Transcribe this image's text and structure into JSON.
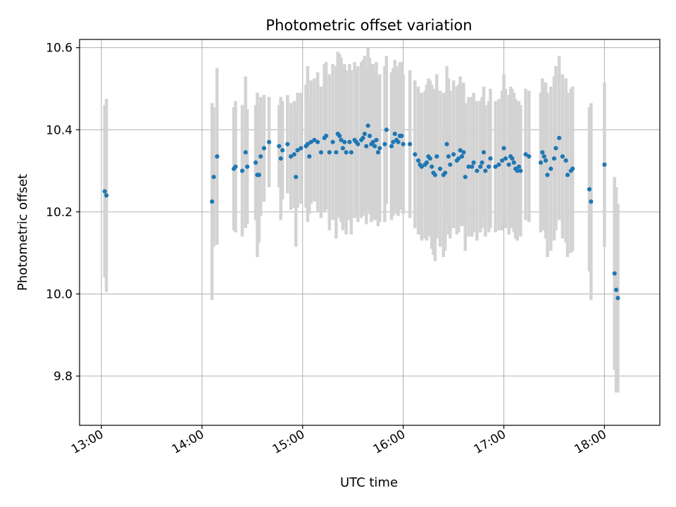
{
  "chart_data": {
    "type": "scatter",
    "title": "Photometric offset variation",
    "xlabel": "UTC time",
    "ylabel": "Photometric offset",
    "x_ticks": [
      "13:00",
      "14:00",
      "15:00",
      "16:00",
      "17:00",
      "18:00"
    ],
    "x_tick_hours": [
      13,
      14,
      15,
      16,
      17,
      18
    ],
    "y_ticks": [
      "9.8",
      "10.0",
      "10.2",
      "10.4",
      "10.6"
    ],
    "y_tick_values": [
      9.8,
      10.0,
      10.2,
      10.4,
      10.6
    ],
    "xlim": [
      "12:47",
      "18:33"
    ],
    "ylim": [
      9.68,
      10.62
    ],
    "grid": true,
    "colors": {
      "points": "#1f77b4",
      "errorbars": "#d3d3d3",
      "grid": "#b0b0b0"
    },
    "series": [
      {
        "points": [
          {
            "x": "13:02",
            "y": 10.25,
            "err": 0.21
          },
          {
            "x": "13:03",
            "y": 10.24,
            "err": 0.235
          },
          {
            "x": "14:06",
            "y": 10.225,
            "err": 0.24
          },
          {
            "x": "14:07",
            "y": 10.285,
            "err": 0.17
          },
          {
            "x": "14:09",
            "y": 10.335,
            "err": 0.215
          },
          {
            "x": "14:19",
            "y": 10.305,
            "err": 0.15
          },
          {
            "x": "14:20",
            "y": 10.31,
            "err": 0.16
          },
          {
            "x": "14:24",
            "y": 10.3,
            "err": 0.16
          },
          {
            "x": "14:26",
            "y": 10.345,
            "err": 0.185
          },
          {
            "x": "14:27",
            "y": 10.31,
            "err": 0.14
          },
          {
            "x": "14:32",
            "y": 10.32,
            "err": 0.14
          },
          {
            "x": "14:33",
            "y": 10.29,
            "err": 0.2
          },
          {
            "x": "14:34",
            "y": 10.29,
            "err": 0.165
          },
          {
            "x": "14:35",
            "y": 10.335,
            "err": 0.145
          },
          {
            "x": "14:37",
            "y": 10.355,
            "err": 0.13
          },
          {
            "x": "14:40",
            "y": 10.37,
            "err": 0.11
          },
          {
            "x": "14:46",
            "y": 10.36,
            "err": 0.1
          },
          {
            "x": "14:47",
            "y": 10.33,
            "err": 0.15
          },
          {
            "x": "14:48",
            "y": 10.35,
            "err": 0.12
          },
          {
            "x": "14:51",
            "y": 10.365,
            "err": 0.12
          },
          {
            "x": "14:53",
            "y": 10.335,
            "err": 0.13
          },
          {
            "x": "14:55",
            "y": 10.34,
            "err": 0.13
          },
          {
            "x": "14:56",
            "y": 10.285,
            "err": 0.17
          },
          {
            "x": "14:57",
            "y": 10.35,
            "err": 0.14
          },
          {
            "x": "14:59",
            "y": 10.355,
            "err": 0.135
          },
          {
            "x": "15:02",
            "y": 10.36,
            "err": 0.15
          },
          {
            "x": "15:03",
            "y": 10.365,
            "err": 0.19
          },
          {
            "x": "15:04",
            "y": 10.335,
            "err": 0.14
          },
          {
            "x": "15:05",
            "y": 10.37,
            "err": 0.15
          },
          {
            "x": "15:07",
            "y": 10.375,
            "err": 0.15
          },
          {
            "x": "15:09",
            "y": 10.37,
            "err": 0.17
          },
          {
            "x": "15:11",
            "y": 10.345,
            "err": 0.16
          },
          {
            "x": "15:13",
            "y": 10.38,
            "err": 0.18
          },
          {
            "x": "15:14",
            "y": 10.385,
            "err": 0.18
          },
          {
            "x": "15:16",
            "y": 10.345,
            "err": 0.19
          },
          {
            "x": "15:18",
            "y": 10.37,
            "err": 0.19
          },
          {
            "x": "15:20",
            "y": 10.345,
            "err": 0.21
          },
          {
            "x": "15:21",
            "y": 10.39,
            "err": 0.2
          },
          {
            "x": "15:22",
            "y": 10.385,
            "err": 0.2
          },
          {
            "x": "15:23",
            "y": 10.375,
            "err": 0.2
          },
          {
            "x": "15:24",
            "y": 10.355,
            "err": 0.2
          },
          {
            "x": "15:25",
            "y": 10.37,
            "err": 0.19
          },
          {
            "x": "15:26",
            "y": 10.345,
            "err": 0.2
          },
          {
            "x": "15:28",
            "y": 10.37,
            "err": 0.19
          },
          {
            "x": "15:29",
            "y": 10.345,
            "err": 0.2
          },
          {
            "x": "15:31",
            "y": 10.375,
            "err": 0.19
          },
          {
            "x": "15:32",
            "y": 10.37,
            "err": 0.18
          },
          {
            "x": "15:33",
            "y": 10.365,
            "err": 0.19
          },
          {
            "x": "15:35",
            "y": 10.375,
            "err": 0.19
          },
          {
            "x": "15:36",
            "y": 10.38,
            "err": 0.19
          },
          {
            "x": "15:37",
            "y": 10.39,
            "err": 0.19
          },
          {
            "x": "15:38",
            "y": 10.36,
            "err": 0.19
          },
          {
            "x": "15:39",
            "y": 10.41,
            "err": 0.19
          },
          {
            "x": "15:40",
            "y": 10.385,
            "err": 0.19
          },
          {
            "x": "15:41",
            "y": 10.365,
            "err": 0.19
          },
          {
            "x": "15:42",
            "y": 10.37,
            "err": 0.19
          },
          {
            "x": "15:43",
            "y": 10.36,
            "err": 0.18
          },
          {
            "x": "15:44",
            "y": 10.375,
            "err": 0.19
          },
          {
            "x": "15:45",
            "y": 10.345,
            "err": 0.18
          },
          {
            "x": "15:46",
            "y": 10.355,
            "err": 0.18
          },
          {
            "x": "15:49",
            "y": 10.365,
            "err": 0.19
          },
          {
            "x": "15:50",
            "y": 10.4,
            "err": 0.18
          },
          {
            "x": "15:53",
            "y": 10.36,
            "err": 0.18
          },
          {
            "x": "15:54",
            "y": 10.37,
            "err": 0.18
          },
          {
            "x": "15:55",
            "y": 10.39,
            "err": 0.18
          },
          {
            "x": "15:56",
            "y": 10.375,
            "err": 0.18
          },
          {
            "x": "15:57",
            "y": 10.37,
            "err": 0.18
          },
          {
            "x": "15:58",
            "y": 10.385,
            "err": 0.18
          },
          {
            "x": "15:59",
            "y": 10.385,
            "err": 0.18
          },
          {
            "x": "16:00",
            "y": 10.365,
            "err": 0.17
          },
          {
            "x": "16:04",
            "y": 10.365,
            "err": 0.18
          },
          {
            "x": "16:07",
            "y": 10.34,
            "err": 0.18
          },
          {
            "x": "16:09",
            "y": 10.325,
            "err": 0.18
          },
          {
            "x": "16:10",
            "y": 10.315,
            "err": 0.17
          },
          {
            "x": "16:11",
            "y": 10.31,
            "err": 0.18
          },
          {
            "x": "16:13",
            "y": 10.315,
            "err": 0.18
          },
          {
            "x": "16:14",
            "y": 10.32,
            "err": 0.19
          },
          {
            "x": "16:15",
            "y": 10.335,
            "err": 0.19
          },
          {
            "x": "16:16",
            "y": 10.33,
            "err": 0.19
          },
          {
            "x": "16:17",
            "y": 10.31,
            "err": 0.2
          },
          {
            "x": "16:18",
            "y": 10.295,
            "err": 0.2
          },
          {
            "x": "16:19",
            "y": 10.29,
            "err": 0.21
          },
          {
            "x": "16:20",
            "y": 10.335,
            "err": 0.2
          },
          {
            "x": "16:22",
            "y": 10.305,
            "err": 0.19
          },
          {
            "x": "16:24",
            "y": 10.29,
            "err": 0.2
          },
          {
            "x": "16:25",
            "y": 10.295,
            "err": 0.19
          },
          {
            "x": "16:26",
            "y": 10.365,
            "err": 0.19
          },
          {
            "x": "16:27",
            "y": 10.335,
            "err": 0.19
          },
          {
            "x": "16:28",
            "y": 10.315,
            "err": 0.18
          },
          {
            "x": "16:30",
            "y": 10.34,
            "err": 0.18
          },
          {
            "x": "16:32",
            "y": 10.325,
            "err": 0.18
          },
          {
            "x": "16:33",
            "y": 10.33,
            "err": 0.18
          },
          {
            "x": "16:34",
            "y": 10.35,
            "err": 0.18
          },
          {
            "x": "16:35",
            "y": 10.335,
            "err": 0.17
          },
          {
            "x": "16:36",
            "y": 10.345,
            "err": 0.17
          },
          {
            "x": "16:37",
            "y": 10.285,
            "err": 0.18
          },
          {
            "x": "16:39",
            "y": 10.31,
            "err": 0.17
          },
          {
            "x": "16:41",
            "y": 10.31,
            "err": 0.17
          },
          {
            "x": "16:42",
            "y": 10.32,
            "err": 0.17
          },
          {
            "x": "16:44",
            "y": 10.3,
            "err": 0.17
          },
          {
            "x": "16:46",
            "y": 10.31,
            "err": 0.16
          },
          {
            "x": "16:47",
            "y": 10.32,
            "err": 0.16
          },
          {
            "x": "16:48",
            "y": 10.345,
            "err": 0.16
          },
          {
            "x": "16:49",
            "y": 10.3,
            "err": 0.16
          },
          {
            "x": "16:51",
            "y": 10.31,
            "err": 0.16
          },
          {
            "x": "16:52",
            "y": 10.33,
            "err": 0.17
          },
          {
            "x": "16:55",
            "y": 10.31,
            "err": 0.16
          },
          {
            "x": "16:57",
            "y": 10.315,
            "err": 0.16
          },
          {
            "x": "16:59",
            "y": 10.325,
            "err": 0.17
          },
          {
            "x": "17:00",
            "y": 10.355,
            "err": 0.18
          },
          {
            "x": "17:01",
            "y": 10.33,
            "err": 0.17
          },
          {
            "x": "17:03",
            "y": 10.315,
            "err": 0.17
          },
          {
            "x": "17:04",
            "y": 10.335,
            "err": 0.17
          },
          {
            "x": "17:05",
            "y": 10.33,
            "err": 0.17
          },
          {
            "x": "17:06",
            "y": 10.32,
            "err": 0.17
          },
          {
            "x": "17:07",
            "y": 10.305,
            "err": 0.17
          },
          {
            "x": "17:08",
            "y": 10.3,
            "err": 0.17
          },
          {
            "x": "17:09",
            "y": 10.31,
            "err": 0.16
          },
          {
            "x": "17:10",
            "y": 10.3,
            "err": 0.16
          },
          {
            "x": "17:13",
            "y": 10.34,
            "err": 0.16
          },
          {
            "x": "17:15",
            "y": 10.335,
            "err": 0.16
          },
          {
            "x": "17:22",
            "y": 10.32,
            "err": 0.17
          },
          {
            "x": "17:23",
            "y": 10.345,
            "err": 0.18
          },
          {
            "x": "17:24",
            "y": 10.335,
            "err": 0.18
          },
          {
            "x": "17:25",
            "y": 10.325,
            "err": 0.19
          },
          {
            "x": "17:26",
            "y": 10.29,
            "err": 0.2
          },
          {
            "x": "17:28",
            "y": 10.305,
            "err": 0.2
          },
          {
            "x": "17:30",
            "y": 10.33,
            "err": 0.2
          },
          {
            "x": "17:31",
            "y": 10.355,
            "err": 0.2
          },
          {
            "x": "17:33",
            "y": 10.38,
            "err": 0.2
          },
          {
            "x": "17:35",
            "y": 10.335,
            "err": 0.2
          },
          {
            "x": "17:37",
            "y": 10.325,
            "err": 0.2
          },
          {
            "x": "17:38",
            "y": 10.29,
            "err": 0.2
          },
          {
            "x": "17:40",
            "y": 10.3,
            "err": 0.2
          },
          {
            "x": "17:41",
            "y": 10.305,
            "err": 0.2
          },
          {
            "x": "17:51",
            "y": 10.255,
            "err": 0.2
          },
          {
            "x": "17:52",
            "y": 10.225,
            "err": 0.24
          },
          {
            "x": "18:00",
            "y": 10.315,
            "err": 0.2
          },
          {
            "x": "18:06",
            "y": 10.05,
            "err": 0.235
          },
          {
            "x": "18:07",
            "y": 10.01,
            "err": 0.25
          },
          {
            "x": "18:08",
            "y": 9.99,
            "err": 0.23
          }
        ]
      }
    ]
  }
}
